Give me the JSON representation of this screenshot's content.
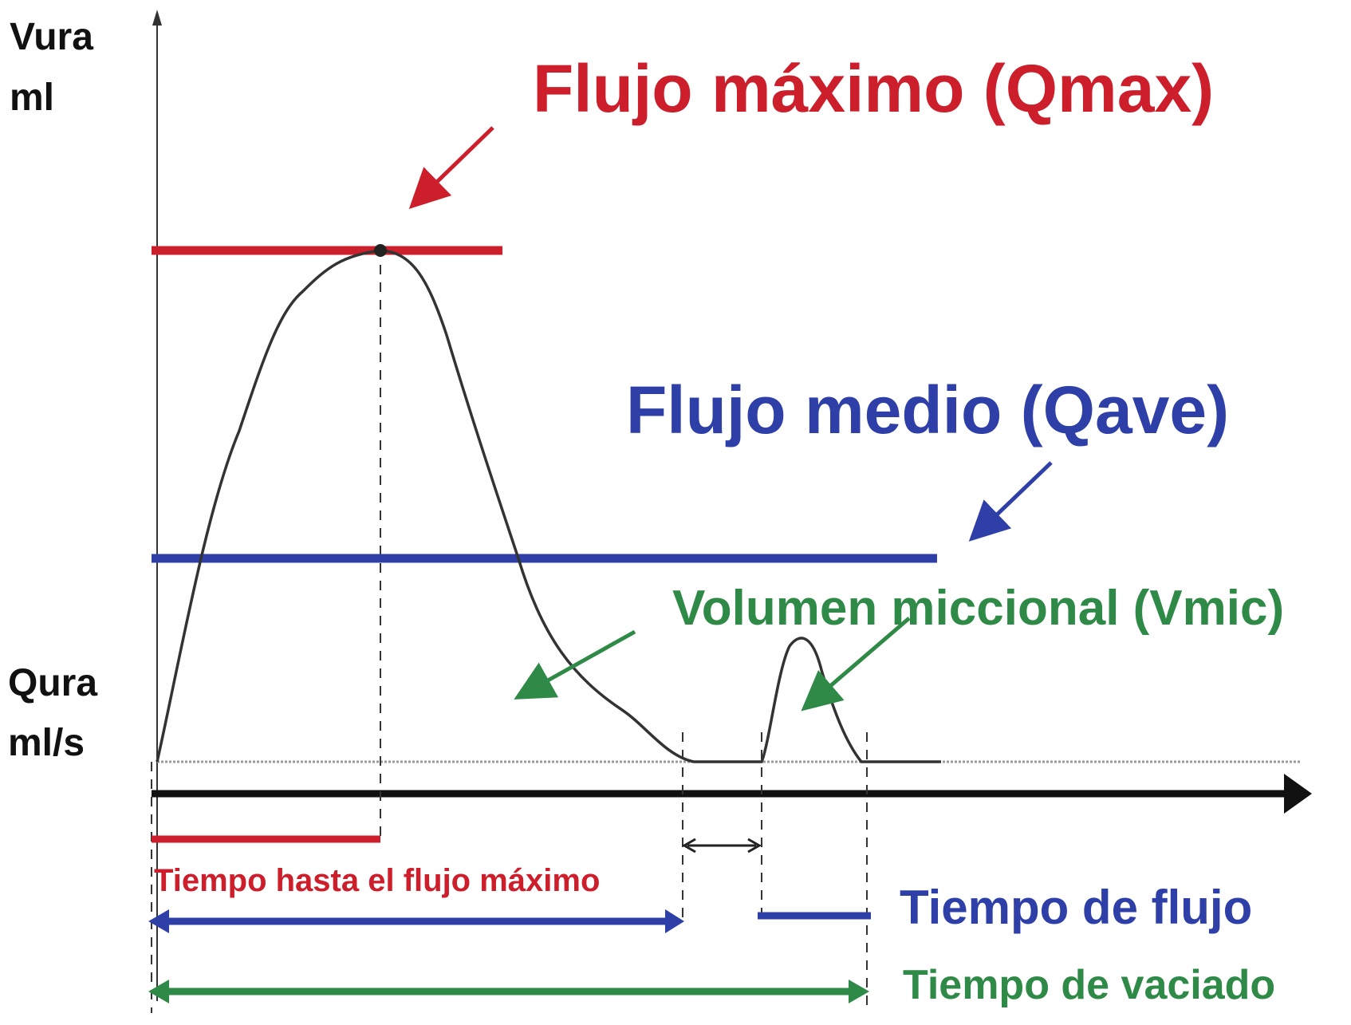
{
  "axis_labels": {
    "top_line1": "Vura",
    "top_line2": "ml",
    "bottom_line1": "Qura",
    "bottom_line2": "ml/s"
  },
  "annotations": {
    "qmax": "Flujo máximo (Qmax)",
    "qave": "Flujo medio (Qave)",
    "vmic": "Volumen miccional (Vmic)",
    "time_to_max": "Tiempo hasta el flujo máximo",
    "flow_time": "Tiempo de flujo",
    "voiding_time": "Tiempo de vaciado"
  },
  "colors": {
    "red": "#cc1f2b",
    "blue": "#2e40a8",
    "green": "#2f8a47",
    "curve": "#333333",
    "axis": "#111111"
  }
}
